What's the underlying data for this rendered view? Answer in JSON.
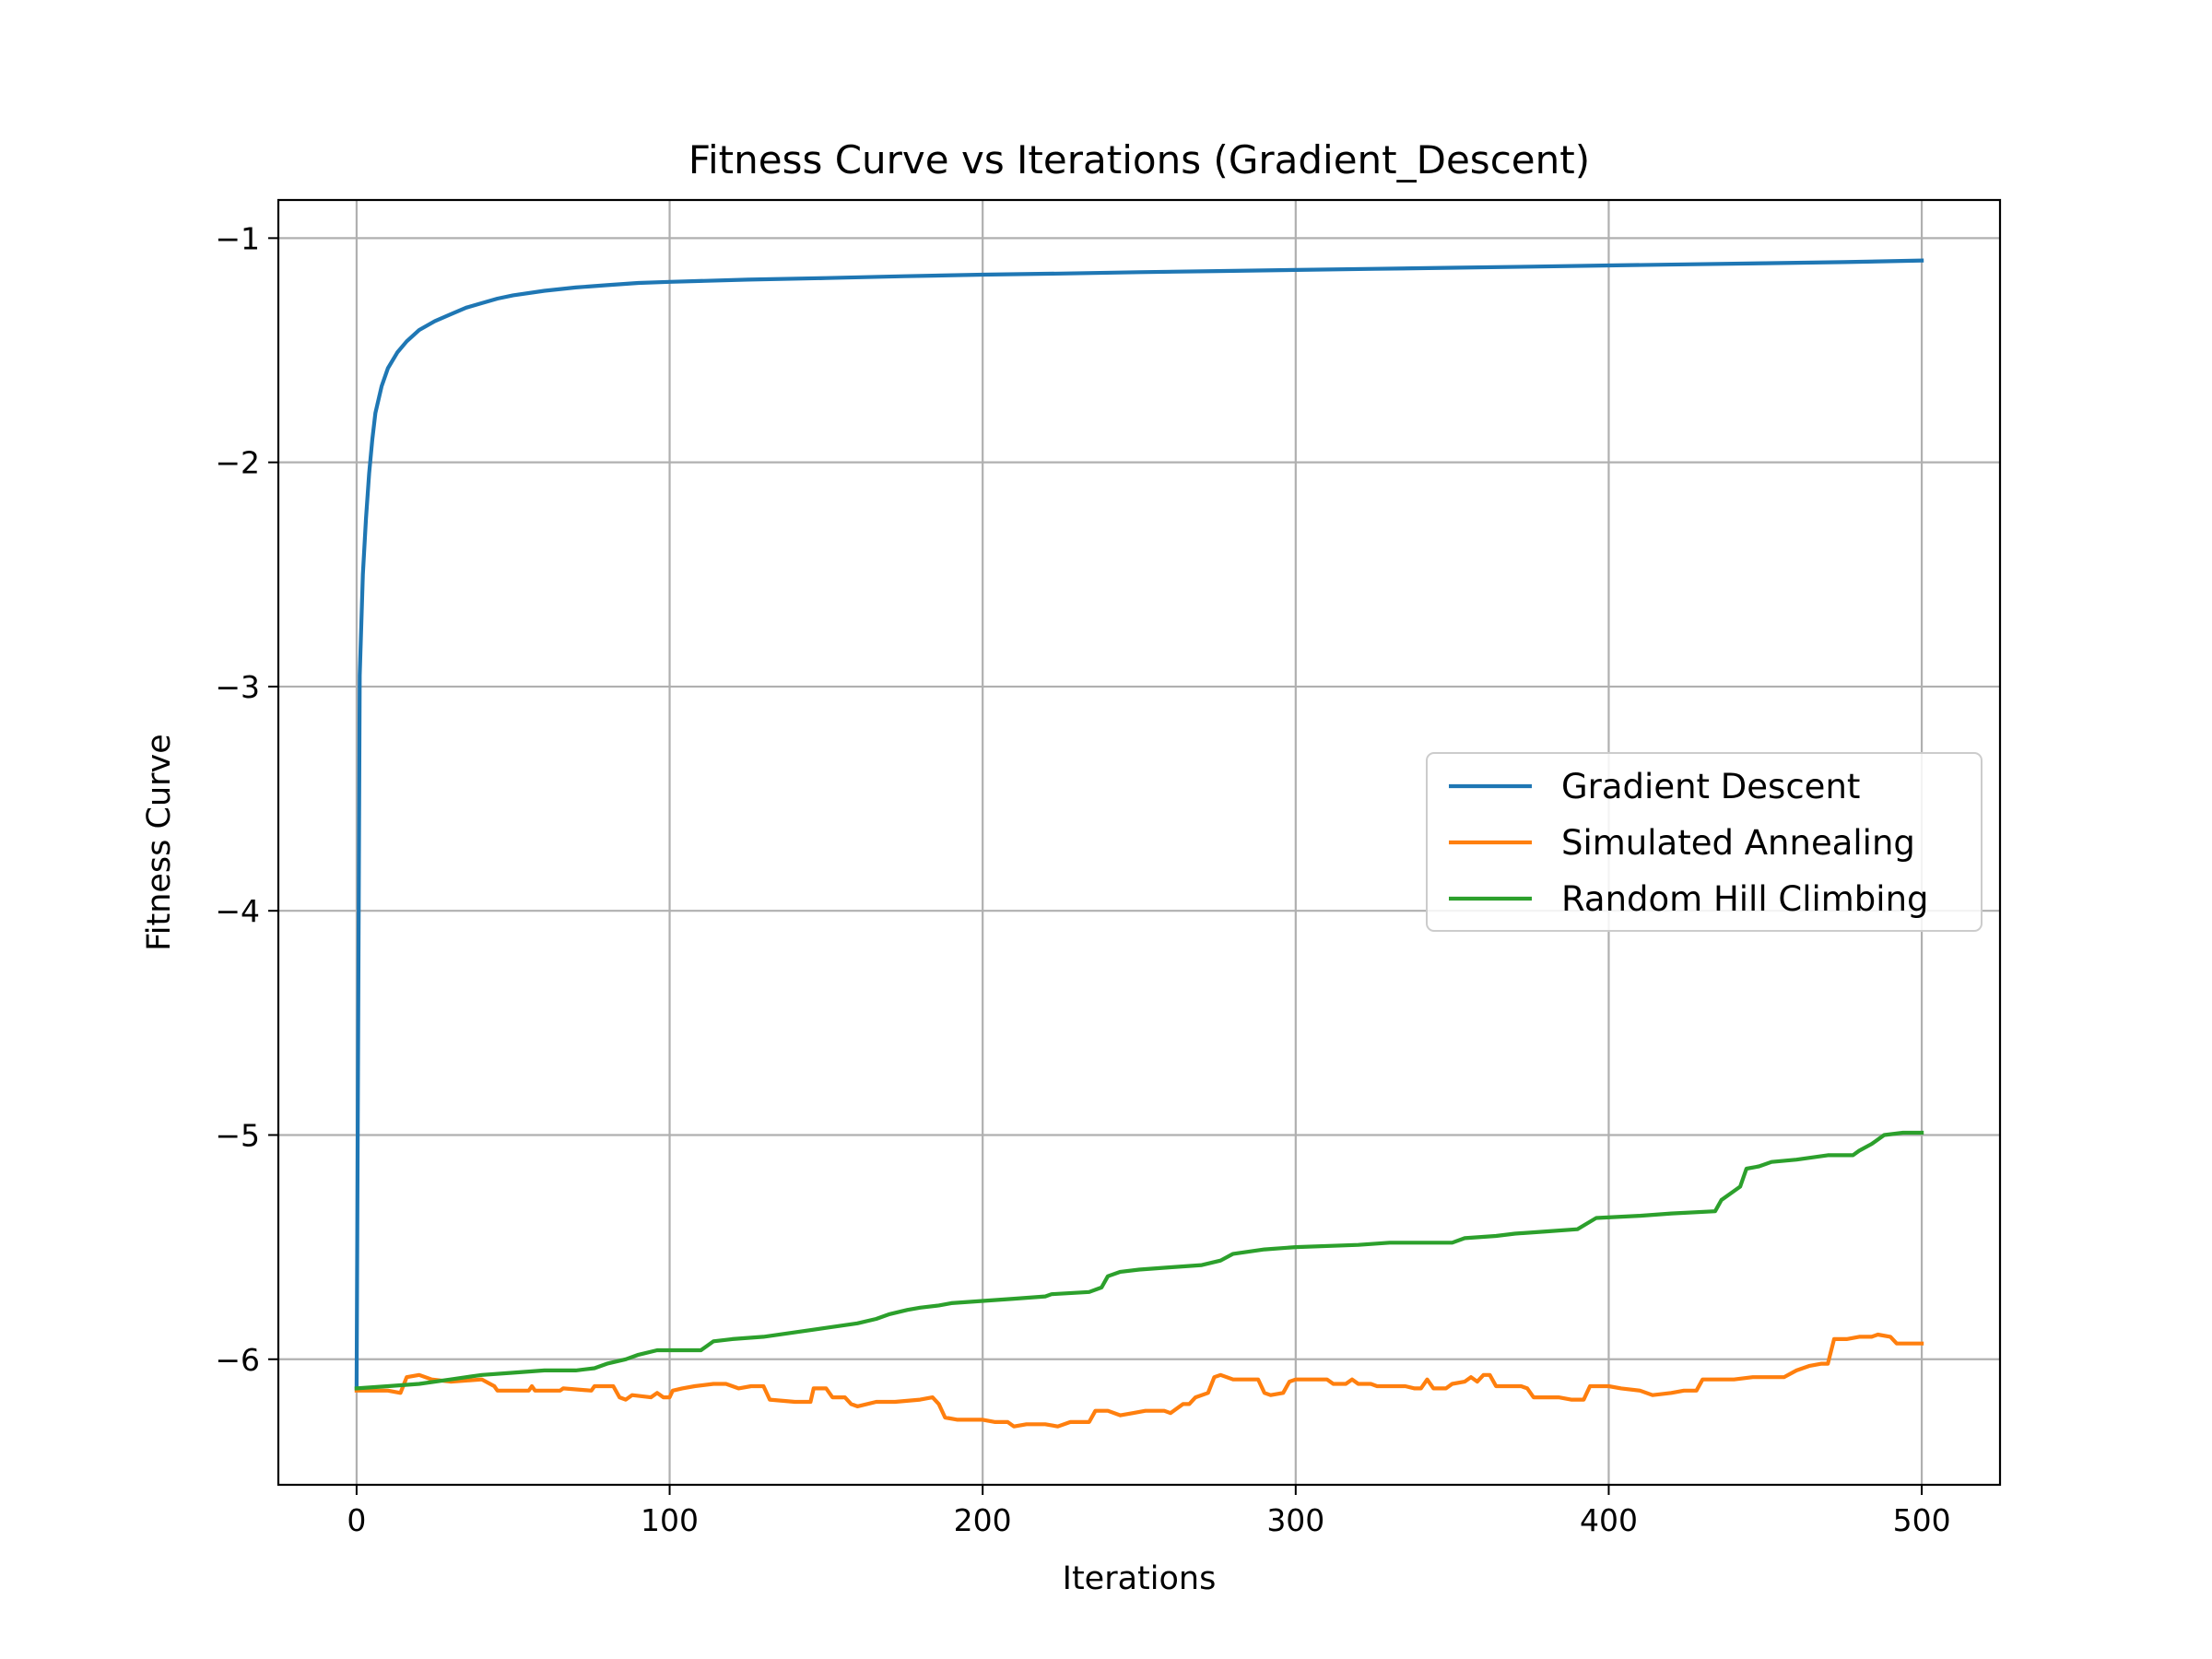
{
  "chart_data": {
    "type": "line",
    "title": "Fitness Curve vs Iterations (Gradient_Descent)",
    "xlabel": "Iterations",
    "ylabel": "Fitness Curve",
    "xlim": [
      -25,
      525
    ],
    "ylim": [
      -6.56,
      -0.83
    ],
    "xticks": [
      0,
      100,
      200,
      300,
      400,
      500
    ],
    "yticks": [
      -6,
      -5,
      -4,
      -3,
      -2,
      -1
    ],
    "grid": true,
    "legend_position": "center-right",
    "series": [
      {
        "name": "Gradient Descent",
        "color": "#1f77b4",
        "points": [
          [
            0,
            -6.13
          ],
          [
            1,
            -2.95
          ],
          [
            2,
            -2.5
          ],
          [
            3,
            -2.25
          ],
          [
            4,
            -2.05
          ],
          [
            5,
            -1.9
          ],
          [
            6,
            -1.78
          ],
          [
            8,
            -1.66
          ],
          [
            10,
            -1.58
          ],
          [
            13,
            -1.51
          ],
          [
            16,
            -1.46
          ],
          [
            20,
            -1.41
          ],
          [
            25,
            -1.37
          ],
          [
            30,
            -1.34
          ],
          [
            35,
            -1.31
          ],
          [
            40,
            -1.29
          ],
          [
            45,
            -1.27
          ],
          [
            50,
            -1.255
          ],
          [
            60,
            -1.235
          ],
          [
            70,
            -1.22
          ],
          [
            80,
            -1.21
          ],
          [
            90,
            -1.2
          ],
          [
            100,
            -1.195
          ],
          [
            125,
            -1.185
          ],
          [
            150,
            -1.178
          ],
          [
            175,
            -1.17
          ],
          [
            200,
            -1.163
          ],
          [
            225,
            -1.158
          ],
          [
            250,
            -1.152
          ],
          [
            275,
            -1.147
          ],
          [
            300,
            -1.142
          ],
          [
            325,
            -1.137
          ],
          [
            350,
            -1.132
          ],
          [
            375,
            -1.127
          ],
          [
            400,
            -1.122
          ],
          [
            425,
            -1.117
          ],
          [
            450,
            -1.112
          ],
          [
            475,
            -1.107
          ],
          [
            500,
            -1.1
          ]
        ]
      },
      {
        "name": "Simulated Annealing",
        "color": "#ff7f0e",
        "points": [
          [
            0,
            -6.14
          ],
          [
            10,
            -6.14
          ],
          [
            14,
            -6.15
          ],
          [
            16,
            -6.08
          ],
          [
            20,
            -6.07
          ],
          [
            24,
            -6.09
          ],
          [
            30,
            -6.1
          ],
          [
            40,
            -6.09
          ],
          [
            44,
            -6.12
          ],
          [
            45,
            -6.14
          ],
          [
            55,
            -6.14
          ],
          [
            56,
            -6.12
          ],
          [
            57,
            -6.14
          ],
          [
            65,
            -6.14
          ],
          [
            66,
            -6.13
          ],
          [
            75,
            -6.14
          ],
          [
            76,
            -6.12
          ],
          [
            82,
            -6.12
          ],
          [
            84,
            -6.17
          ],
          [
            86,
            -6.18
          ],
          [
            88,
            -6.16
          ],
          [
            94,
            -6.17
          ],
          [
            96,
            -6.15
          ],
          [
            98,
            -6.17
          ],
          [
            100,
            -6.17
          ],
          [
            101,
            -6.14
          ],
          [
            104,
            -6.13
          ],
          [
            108,
            -6.12
          ],
          [
            114,
            -6.11
          ],
          [
            118,
            -6.11
          ],
          [
            122,
            -6.13
          ],
          [
            126,
            -6.12
          ],
          [
            130,
            -6.12
          ],
          [
            132,
            -6.18
          ],
          [
            140,
            -6.19
          ],
          [
            145,
            -6.19
          ],
          [
            146,
            -6.13
          ],
          [
            150,
            -6.13
          ],
          [
            152,
            -6.17
          ],
          [
            156,
            -6.17
          ],
          [
            158,
            -6.2
          ],
          [
            160,
            -6.21
          ],
          [
            166,
            -6.19
          ],
          [
            172,
            -6.19
          ],
          [
            180,
            -6.18
          ],
          [
            184,
            -6.17
          ],
          [
            186,
            -6.2
          ],
          [
            188,
            -6.26
          ],
          [
            192,
            -6.27
          ],
          [
            200,
            -6.27
          ],
          [
            204,
            -6.28
          ],
          [
            208,
            -6.28
          ],
          [
            210,
            -6.3
          ],
          [
            214,
            -6.29
          ],
          [
            220,
            -6.29
          ],
          [
            224,
            -6.3
          ],
          [
            228,
            -6.28
          ],
          [
            234,
            -6.28
          ],
          [
            236,
            -6.23
          ],
          [
            240,
            -6.23
          ],
          [
            244,
            -6.25
          ],
          [
            248,
            -6.24
          ],
          [
            252,
            -6.23
          ],
          [
            258,
            -6.23
          ],
          [
            260,
            -6.24
          ],
          [
            264,
            -6.2
          ],
          [
            266,
            -6.2
          ],
          [
            268,
            -6.17
          ],
          [
            272,
            -6.15
          ],
          [
            274,
            -6.08
          ],
          [
            276,
            -6.07
          ],
          [
            280,
            -6.09
          ],
          [
            288,
            -6.09
          ],
          [
            290,
            -6.15
          ],
          [
            292,
            -6.16
          ],
          [
            296,
            -6.15
          ],
          [
            298,
            -6.1
          ],
          [
            300,
            -6.09
          ],
          [
            310,
            -6.09
          ],
          [
            312,
            -6.11
          ],
          [
            316,
            -6.11
          ],
          [
            318,
            -6.09
          ],
          [
            320,
            -6.11
          ],
          [
            324,
            -6.11
          ],
          [
            326,
            -6.12
          ],
          [
            335,
            -6.12
          ],
          [
            338,
            -6.13
          ],
          [
            340,
            -6.13
          ],
          [
            342,
            -6.09
          ],
          [
            344,
            -6.13
          ],
          [
            348,
            -6.13
          ],
          [
            350,
            -6.11
          ],
          [
            354,
            -6.1
          ],
          [
            356,
            -6.08
          ],
          [
            358,
            -6.1
          ],
          [
            360,
            -6.07
          ],
          [
            362,
            -6.07
          ],
          [
            364,
            -6.12
          ],
          [
            368,
            -6.12
          ],
          [
            372,
            -6.12
          ],
          [
            374,
            -6.13
          ],
          [
            376,
            -6.17
          ],
          [
            384,
            -6.17
          ],
          [
            388,
            -6.18
          ],
          [
            392,
            -6.18
          ],
          [
            394,
            -6.12
          ],
          [
            400,
            -6.12
          ],
          [
            404,
            -6.13
          ],
          [
            410,
            -6.14
          ],
          [
            414,
            -6.16
          ],
          [
            420,
            -6.15
          ],
          [
            424,
            -6.14
          ],
          [
            428,
            -6.14
          ],
          [
            430,
            -6.09
          ],
          [
            440,
            -6.09
          ],
          [
            446,
            -6.08
          ],
          [
            456,
            -6.08
          ],
          [
            460,
            -6.05
          ],
          [
            464,
            -6.03
          ],
          [
            468,
            -6.02
          ],
          [
            470,
            -6.02
          ],
          [
            472,
            -5.91
          ],
          [
            476,
            -5.91
          ],
          [
            480,
            -5.9
          ],
          [
            484,
            -5.9
          ],
          [
            486,
            -5.89
          ],
          [
            490,
            -5.9
          ],
          [
            492,
            -5.93
          ],
          [
            500,
            -5.93
          ]
        ]
      },
      {
        "name": "Random Hill Climbing",
        "color": "#2ca02c",
        "points": [
          [
            0,
            -6.13
          ],
          [
            10,
            -6.12
          ],
          [
            20,
            -6.11
          ],
          [
            30,
            -6.09
          ],
          [
            40,
            -6.07
          ],
          [
            50,
            -6.06
          ],
          [
            60,
            -6.05
          ],
          [
            70,
            -6.05
          ],
          [
            76,
            -6.04
          ],
          [
            80,
            -6.02
          ],
          [
            86,
            -6.0
          ],
          [
            90,
            -5.98
          ],
          [
            96,
            -5.96
          ],
          [
            110,
            -5.96
          ],
          [
            114,
            -5.92
          ],
          [
            120,
            -5.91
          ],
          [
            130,
            -5.9
          ],
          [
            140,
            -5.88
          ],
          [
            150,
            -5.86
          ],
          [
            160,
            -5.84
          ],
          [
            166,
            -5.82
          ],
          [
            170,
            -5.8
          ],
          [
            176,
            -5.78
          ],
          [
            180,
            -5.77
          ],
          [
            186,
            -5.76
          ],
          [
            190,
            -5.75
          ],
          [
            200,
            -5.74
          ],
          [
            210,
            -5.73
          ],
          [
            220,
            -5.72
          ],
          [
            222,
            -5.71
          ],
          [
            234,
            -5.7
          ],
          [
            238,
            -5.68
          ],
          [
            240,
            -5.63
          ],
          [
            244,
            -5.61
          ],
          [
            250,
            -5.6
          ],
          [
            260,
            -5.59
          ],
          [
            270,
            -5.58
          ],
          [
            276,
            -5.56
          ],
          [
            280,
            -5.53
          ],
          [
            290,
            -5.51
          ],
          [
            300,
            -5.5
          ],
          [
            320,
            -5.49
          ],
          [
            330,
            -5.48
          ],
          [
            350,
            -5.48
          ],
          [
            354,
            -5.46
          ],
          [
            364,
            -5.45
          ],
          [
            370,
            -5.44
          ],
          [
            380,
            -5.43
          ],
          [
            390,
            -5.42
          ],
          [
            396,
            -5.37
          ],
          [
            410,
            -5.36
          ],
          [
            420,
            -5.35
          ],
          [
            434,
            -5.34
          ],
          [
            436,
            -5.29
          ],
          [
            440,
            -5.25
          ],
          [
            442,
            -5.23
          ],
          [
            444,
            -5.15
          ],
          [
            448,
            -5.14
          ],
          [
            452,
            -5.12
          ],
          [
            460,
            -5.11
          ],
          [
            470,
            -5.09
          ],
          [
            478,
            -5.09
          ],
          [
            480,
            -5.07
          ],
          [
            484,
            -5.04
          ],
          [
            488,
            -5.0
          ],
          [
            494,
            -4.99
          ],
          [
            500,
            -4.99
          ]
        ]
      }
    ]
  }
}
